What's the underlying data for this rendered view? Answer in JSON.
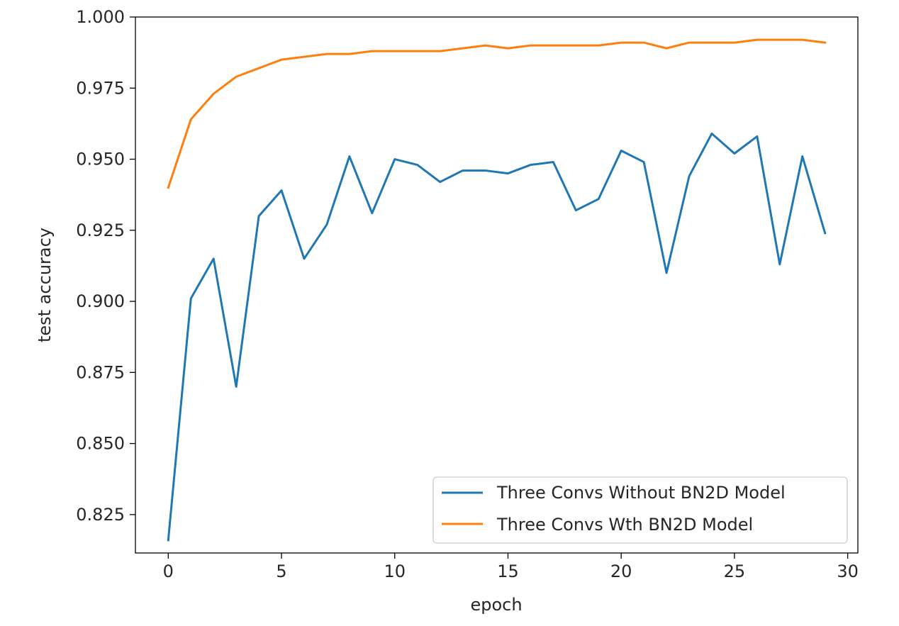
{
  "chart_data": {
    "type": "line",
    "title": "",
    "xlabel": "epoch",
    "ylabel": "test accuracy",
    "xlim": [
      -1.45,
      30.45
    ],
    "ylim": [
      0.8115,
      1.0
    ],
    "xticks": [
      0,
      5,
      10,
      15,
      20,
      25,
      30
    ],
    "xtick_labels": [
      "0",
      "5",
      "10",
      "15",
      "20",
      "25",
      "30"
    ],
    "yticks": [
      0.825,
      0.85,
      0.875,
      0.9,
      0.925,
      0.95,
      0.975,
      1.0
    ],
    "ytick_labels": [
      "0.825",
      "0.850",
      "0.875",
      "0.900",
      "0.925",
      "0.950",
      "0.975",
      "1.000"
    ],
    "grid": false,
    "legend_position": "lower-right",
    "x": [
      0,
      1,
      2,
      3,
      4,
      5,
      6,
      7,
      8,
      9,
      10,
      11,
      12,
      13,
      14,
      15,
      16,
      17,
      18,
      19,
      20,
      21,
      22,
      23,
      24,
      25,
      26,
      27,
      28,
      29
    ],
    "series": [
      {
        "name": "Three Convs Without BN2D Model",
        "color": "#1f77b4",
        "values": [
          0.816,
          0.901,
          0.915,
          0.87,
          0.93,
          0.939,
          0.915,
          0.927,
          0.951,
          0.931,
          0.95,
          0.948,
          0.942,
          0.946,
          0.946,
          0.945,
          0.948,
          0.949,
          0.932,
          0.936,
          0.953,
          0.949,
          0.91,
          0.944,
          0.959,
          0.952,
          0.958,
          0.913,
          0.951,
          0.924
        ]
      },
      {
        "name": "Three Convs Wth BN2D Model",
        "color": "#ff7f0e",
        "values": [
          0.94,
          0.964,
          0.973,
          0.979,
          0.982,
          0.985,
          0.986,
          0.987,
          0.987,
          0.988,
          0.988,
          0.988,
          0.988,
          0.989,
          0.99,
          0.989,
          0.99,
          0.99,
          0.99,
          0.99,
          0.991,
          0.991,
          0.989,
          0.991,
          0.991,
          0.991,
          0.992,
          0.992,
          0.992,
          0.991
        ]
      }
    ]
  }
}
